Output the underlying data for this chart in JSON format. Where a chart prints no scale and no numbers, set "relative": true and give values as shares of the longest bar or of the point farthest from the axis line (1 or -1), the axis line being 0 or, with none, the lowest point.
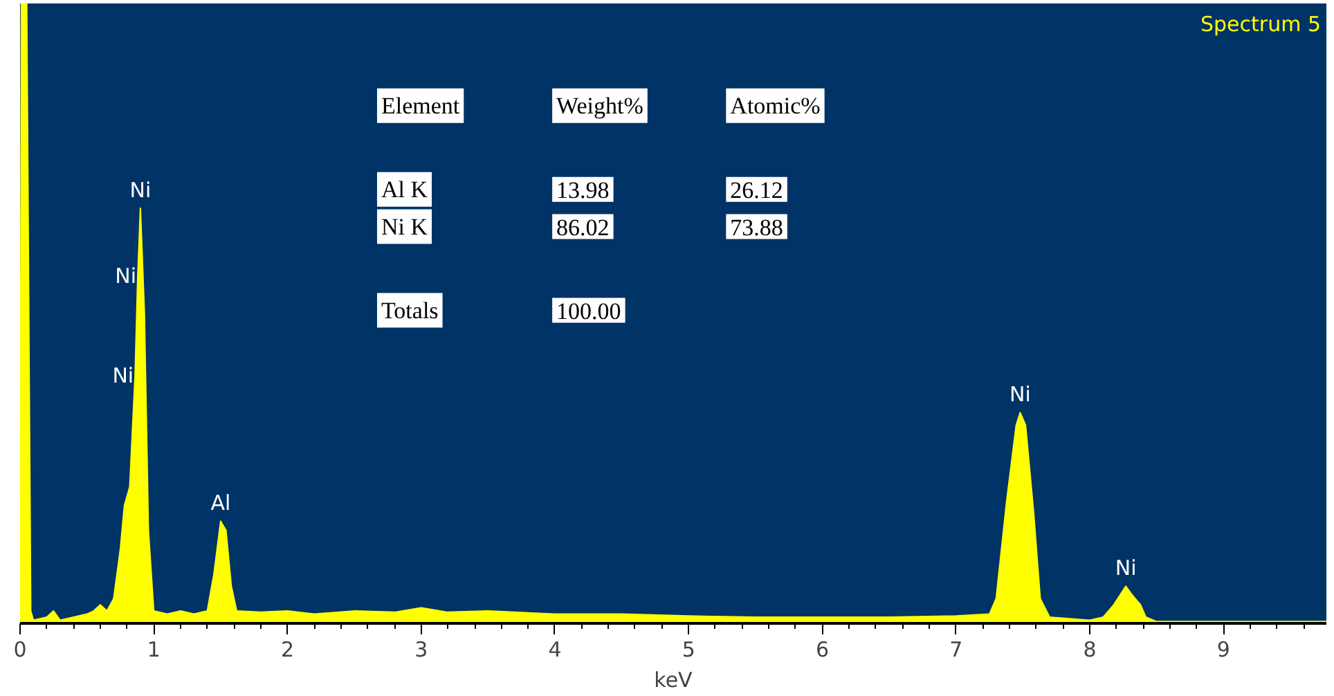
{
  "chart_data": {
    "type": "area",
    "title": "Spectrum 5",
    "xlabel": "keV",
    "relative": true,
    "xlim": [
      0,
      9.77
    ],
    "xticks": [
      0,
      1,
      2,
      3,
      4,
      5,
      6,
      7,
      8,
      9
    ],
    "x": [
      0,
      0.01,
      0.05,
      0.08,
      0.1,
      0.2,
      0.25,
      0.3,
      0.4,
      0.5,
      0.55,
      0.6,
      0.65,
      0.7,
      0.75,
      0.78,
      0.82,
      0.86,
      0.88,
      0.9,
      0.93,
      0.96,
      1.0,
      1.1,
      1.2,
      1.3,
      1.4,
      1.45,
      1.5,
      1.54,
      1.58,
      1.62,
      1.8,
      2.0,
      2.2,
      2.5,
      2.8,
      3.0,
      3.2,
      3.5,
      4.0,
      4.5,
      5.0,
      5.5,
      6.0,
      6.5,
      7.0,
      7.25,
      7.3,
      7.38,
      7.45,
      7.48,
      7.52,
      7.58,
      7.63,
      7.7,
      8.0,
      8.1,
      8.18,
      8.27,
      8.32,
      8.38,
      8.42,
      8.5,
      9.0,
      9.77
    ],
    "series": [
      {
        "color": "#ffff00",
        "values": [
          0,
          1,
          1,
          0.02,
          0.005,
          0.01,
          0.02,
          0.005,
          0.01,
          0.015,
          0.02,
          0.03,
          0.02,
          0.04,
          0.12,
          0.19,
          0.22,
          0.4,
          0.56,
          0.67,
          0.5,
          0.15,
          0.02,
          0.015,
          0.02,
          0.015,
          0.02,
          0.08,
          0.165,
          0.15,
          0.06,
          0.02,
          0.018,
          0.02,
          0.015,
          0.02,
          0.018,
          0.025,
          0.018,
          0.02,
          0.015,
          0.015,
          0.012,
          0.01,
          0.01,
          0.01,
          0.012,
          0.015,
          0.04,
          0.2,
          0.32,
          0.34,
          0.32,
          0.18,
          0.04,
          0.01,
          0.005,
          0.01,
          0.03,
          0.06,
          0.045,
          0.03,
          0.01,
          0.003,
          0.003,
          0.003
        ]
      }
    ],
    "annotations": [
      {
        "text": "Ni",
        "x": 0.9,
        "y": 0.67
      },
      {
        "text": "Ni",
        "x": 0.88,
        "y": 0.56
      },
      {
        "text": "Ni",
        "x": 0.86,
        "y": 0.4
      },
      {
        "text": "Al",
        "x": 1.5,
        "y": 0.165
      },
      {
        "text": "Ni",
        "x": 7.48,
        "y": 0.34
      },
      {
        "text": "Ni",
        "x": 8.27,
        "y": 0.06
      },
      "Element",
      "Weight%",
      "Atomic%",
      "Al K",
      "13.98",
      "26.12",
      "Ni K",
      "86.02",
      "73.88",
      "Totals",
      "100.00"
    ]
  }
}
